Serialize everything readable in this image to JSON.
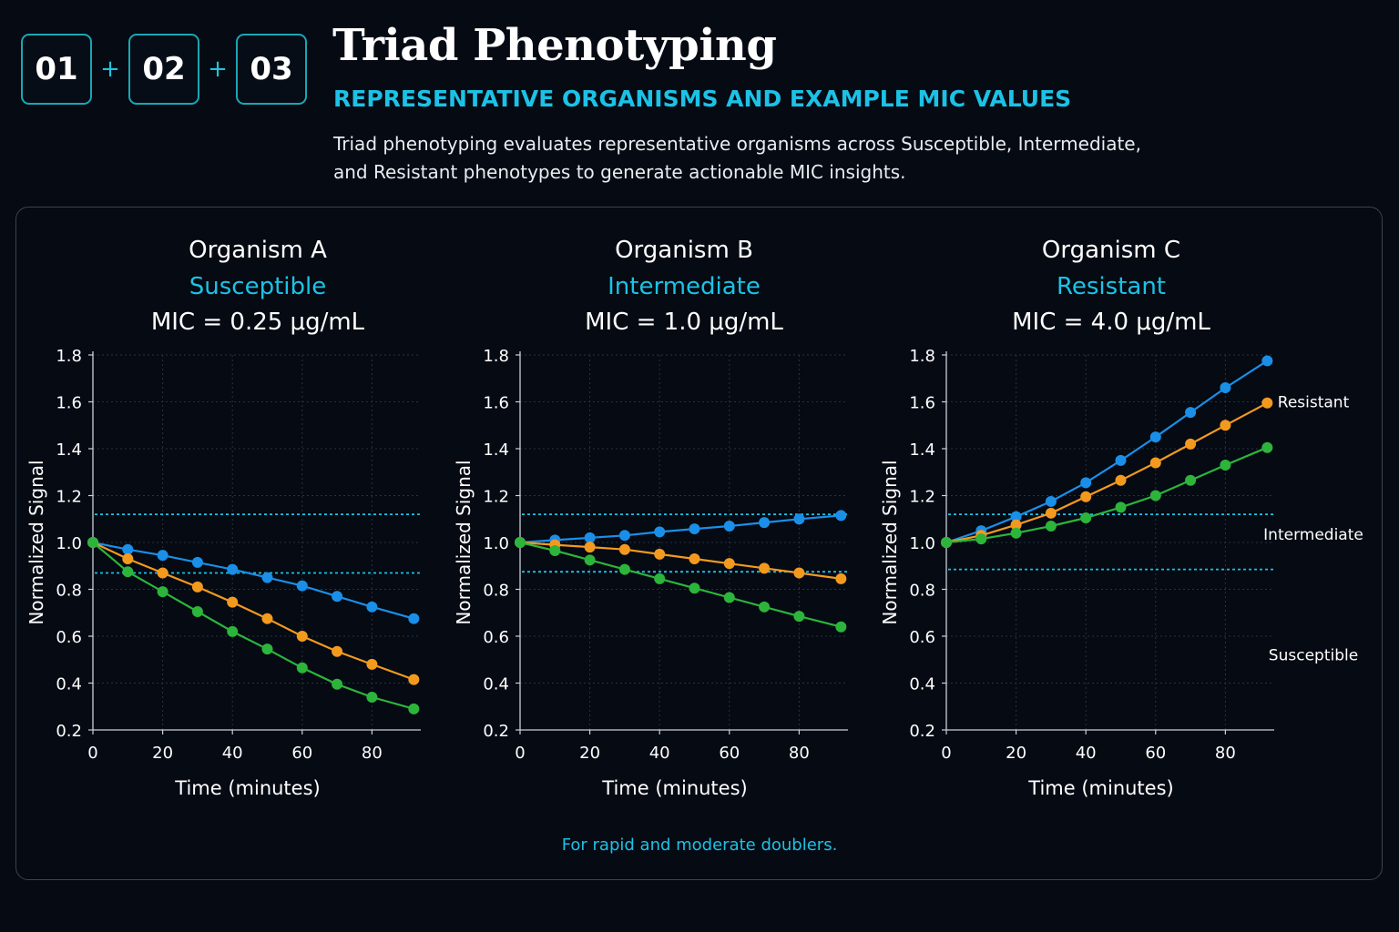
{
  "header": {
    "badges": [
      "01",
      "02",
      "03"
    ],
    "plus": "+",
    "title": "Triad Phenotyping",
    "subtitle": "REPRESENTATIVE ORGANISMS AND EXAMPLE MIC VALUES",
    "description": "Triad phenotyping evaluates representative organisms across Susceptible, Intermediate, and Resistant phenotypes to generate actionable MIC insights."
  },
  "footnote": "For rapid and moderate doublers.",
  "colors": {
    "accent": "#1cc2e6",
    "series_blue": "#1a8fe8",
    "series_orange": "#f39a1e",
    "series_green": "#2cb53a",
    "threshold": "#1cc2e6"
  },
  "chart_data": [
    {
      "type": "line",
      "title": "Organism A",
      "phenotype": "Susceptible",
      "mic": "MIC = 0.25 μg/mL",
      "xlabel": "Time (minutes)",
      "ylabel": "Normalized Signal",
      "xlim": [
        0,
        94
      ],
      "ylim": [
        0.2,
        1.8
      ],
      "xticks": [
        0,
        20,
        40,
        60,
        80
      ],
      "yticks": [
        0.2,
        0.4,
        0.6,
        0.8,
        1.0,
        1.2,
        1.4,
        1.6,
        1.8
      ],
      "grid": true,
      "thresholds": [
        1.12,
        0.87
      ],
      "x": [
        0,
        10,
        20,
        30,
        40,
        50,
        60,
        70,
        80,
        92
      ],
      "series": [
        {
          "color": "blue",
          "values": [
            1.0,
            0.97,
            0.945,
            0.915,
            0.885,
            0.85,
            0.815,
            0.77,
            0.725,
            0.675
          ]
        },
        {
          "color": "orange",
          "values": [
            1.0,
            0.93,
            0.87,
            0.81,
            0.745,
            0.675,
            0.6,
            0.535,
            0.48,
            0.415
          ]
        },
        {
          "color": "green",
          "values": [
            1.0,
            0.875,
            0.79,
            0.705,
            0.62,
            0.545,
            0.465,
            0.395,
            0.34,
            0.29
          ]
        }
      ]
    },
    {
      "type": "line",
      "title": "Organism B",
      "phenotype": "Intermediate",
      "mic": "MIC = 1.0 μg/mL",
      "xlabel": "Time (minutes)",
      "ylabel": "Normalized Signal",
      "xlim": [
        0,
        94
      ],
      "ylim": [
        0.2,
        1.8
      ],
      "xticks": [
        0,
        20,
        40,
        60,
        80
      ],
      "yticks": [
        0.2,
        0.4,
        0.6,
        0.8,
        1.0,
        1.2,
        1.4,
        1.6,
        1.8
      ],
      "grid": true,
      "thresholds": [
        1.12,
        0.875
      ],
      "x": [
        0,
        10,
        20,
        30,
        40,
        50,
        60,
        70,
        80,
        92
      ],
      "series": [
        {
          "color": "blue",
          "values": [
            1.0,
            1.01,
            1.02,
            1.03,
            1.045,
            1.058,
            1.07,
            1.085,
            1.1,
            1.115
          ]
        },
        {
          "color": "orange",
          "values": [
            1.0,
            0.99,
            0.98,
            0.97,
            0.95,
            0.93,
            0.91,
            0.89,
            0.87,
            0.845
          ]
        },
        {
          "color": "green",
          "values": [
            1.0,
            0.965,
            0.925,
            0.885,
            0.845,
            0.805,
            0.765,
            0.725,
            0.685,
            0.64
          ]
        }
      ]
    },
    {
      "type": "line",
      "title": "Organism C",
      "phenotype": "Resistant",
      "mic": "MIC = 4.0 μg/mL",
      "xlabel": "Time (minutes)",
      "ylabel": "Normalized Signal",
      "xlim": [
        0,
        94
      ],
      "ylim": [
        0.2,
        1.8
      ],
      "xticks": [
        0,
        20,
        40,
        60,
        80
      ],
      "yticks": [
        0.2,
        0.4,
        0.6,
        0.8,
        1.0,
        1.2,
        1.4,
        1.6,
        1.8
      ],
      "grid": true,
      "thresholds": [
        1.12,
        0.885
      ],
      "x": [
        0,
        10,
        20,
        30,
        40,
        50,
        60,
        70,
        80,
        92
      ],
      "series": [
        {
          "color": "blue",
          "values": [
            1.0,
            1.05,
            1.11,
            1.175,
            1.255,
            1.35,
            1.45,
            1.555,
            1.66,
            1.775
          ]
        },
        {
          "color": "orange",
          "values": [
            1.0,
            1.03,
            1.075,
            1.125,
            1.195,
            1.265,
            1.34,
            1.42,
            1.5,
            1.595
          ]
        },
        {
          "color": "green",
          "values": [
            1.0,
            1.015,
            1.04,
            1.07,
            1.105,
            1.15,
            1.2,
            1.265,
            1.33,
            1.405
          ]
        }
      ],
      "side_labels": [
        {
          "text": "Resistant",
          "y": 1.6
        },
        {
          "text": "Intermediate",
          "y": 1.035
        },
        {
          "text": "Susceptible",
          "y": 0.52
        }
      ]
    }
  ]
}
